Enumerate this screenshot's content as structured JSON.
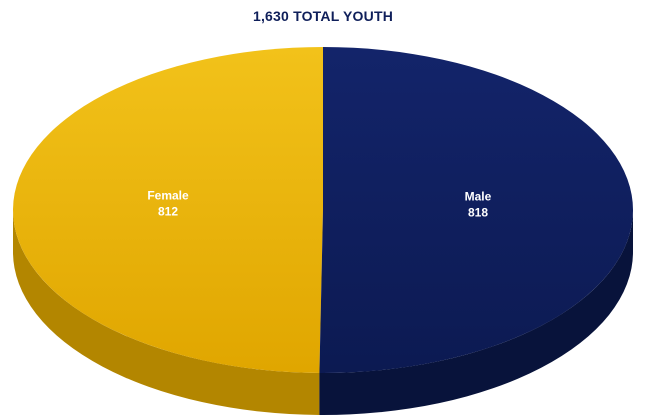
{
  "chart_data": {
    "type": "pie",
    "title": "1,630 TOTAL YOUTH",
    "categories": [
      "Female",
      "Male"
    ],
    "values": [
      812,
      818
    ],
    "value_labels": [
      "812",
      "818"
    ],
    "colors": [
      "#e6ac00",
      "#0f1f5a"
    ],
    "side_colors": [
      "#b38600",
      "#08133b"
    ],
    "style": "3d",
    "legend": "none"
  }
}
